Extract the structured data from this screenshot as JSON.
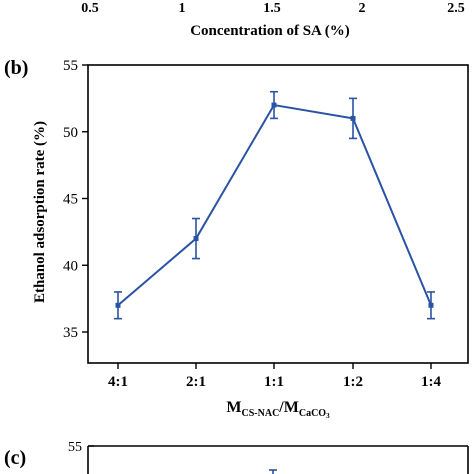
{
  "colors": {
    "series": "#2a53a3",
    "axis": "#000000"
  },
  "top_chart": {
    "tick_labels": [
      "0.5",
      "1",
      "1.5",
      "2",
      "2.5"
    ],
    "xlabel": "Concentration of SA (%)"
  },
  "chart_data": [
    {
      "panel": "(b)",
      "type": "line",
      "categories": [
        "4:1",
        "2:1",
        "1:1",
        "1:2",
        "1:4"
      ],
      "values": [
        37,
        42,
        52,
        51,
        37
      ],
      "error": [
        1.0,
        1.5,
        1.0,
        1.5,
        1.0
      ],
      "ylabel": "Ethanol adsorption rate (%)",
      "xlabel": {
        "main": "M",
        "sub1": "CS-NAC",
        "slash": "/M",
        "sub2": "CaCO",
        "sub3": "3"
      },
      "ylim": [
        35,
        55
      ],
      "yticks": [
        35,
        40,
        45,
        50,
        55
      ],
      "grid": false
    }
  ],
  "panel_c": {
    "label": "(c)",
    "ytick_top": "55"
  }
}
